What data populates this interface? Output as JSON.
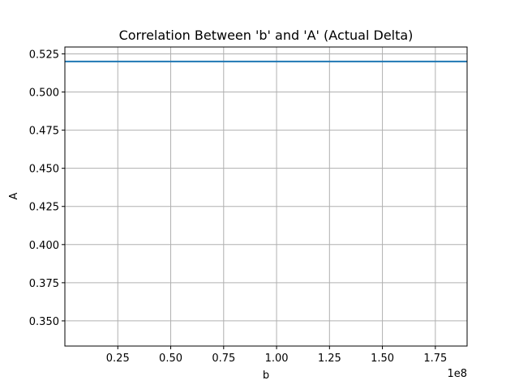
{
  "chart_data": {
    "type": "line",
    "title": "Correlation Between 'b' and 'A' (Actual Delta)",
    "xlabel": "b",
    "ylabel": "A",
    "x_offset_label": "1e8",
    "grid": true,
    "xlim": [
      0,
      1.9
    ],
    "ylim": [
      0.3335,
      0.5295
    ],
    "x_ticks": [
      0.25,
      0.5,
      0.75,
      1.0,
      1.25,
      1.5,
      1.75
    ],
    "x_tick_labels": [
      "0.25",
      "0.50",
      "0.75",
      "1.00",
      "1.25",
      "1.50",
      "1.75"
    ],
    "y_ticks": [
      0.35,
      0.375,
      0.4,
      0.425,
      0.45,
      0.475,
      0.5,
      0.525
    ],
    "y_tick_labels": [
      "0.350",
      "0.375",
      "0.400",
      "0.425",
      "0.450",
      "0.475",
      "0.500",
      "0.525"
    ],
    "series": [
      {
        "name": "A",
        "color": "#1f77b4",
        "x": [
          0,
          1.9
        ],
        "y": [
          0.52,
          0.52
        ]
      }
    ]
  }
}
